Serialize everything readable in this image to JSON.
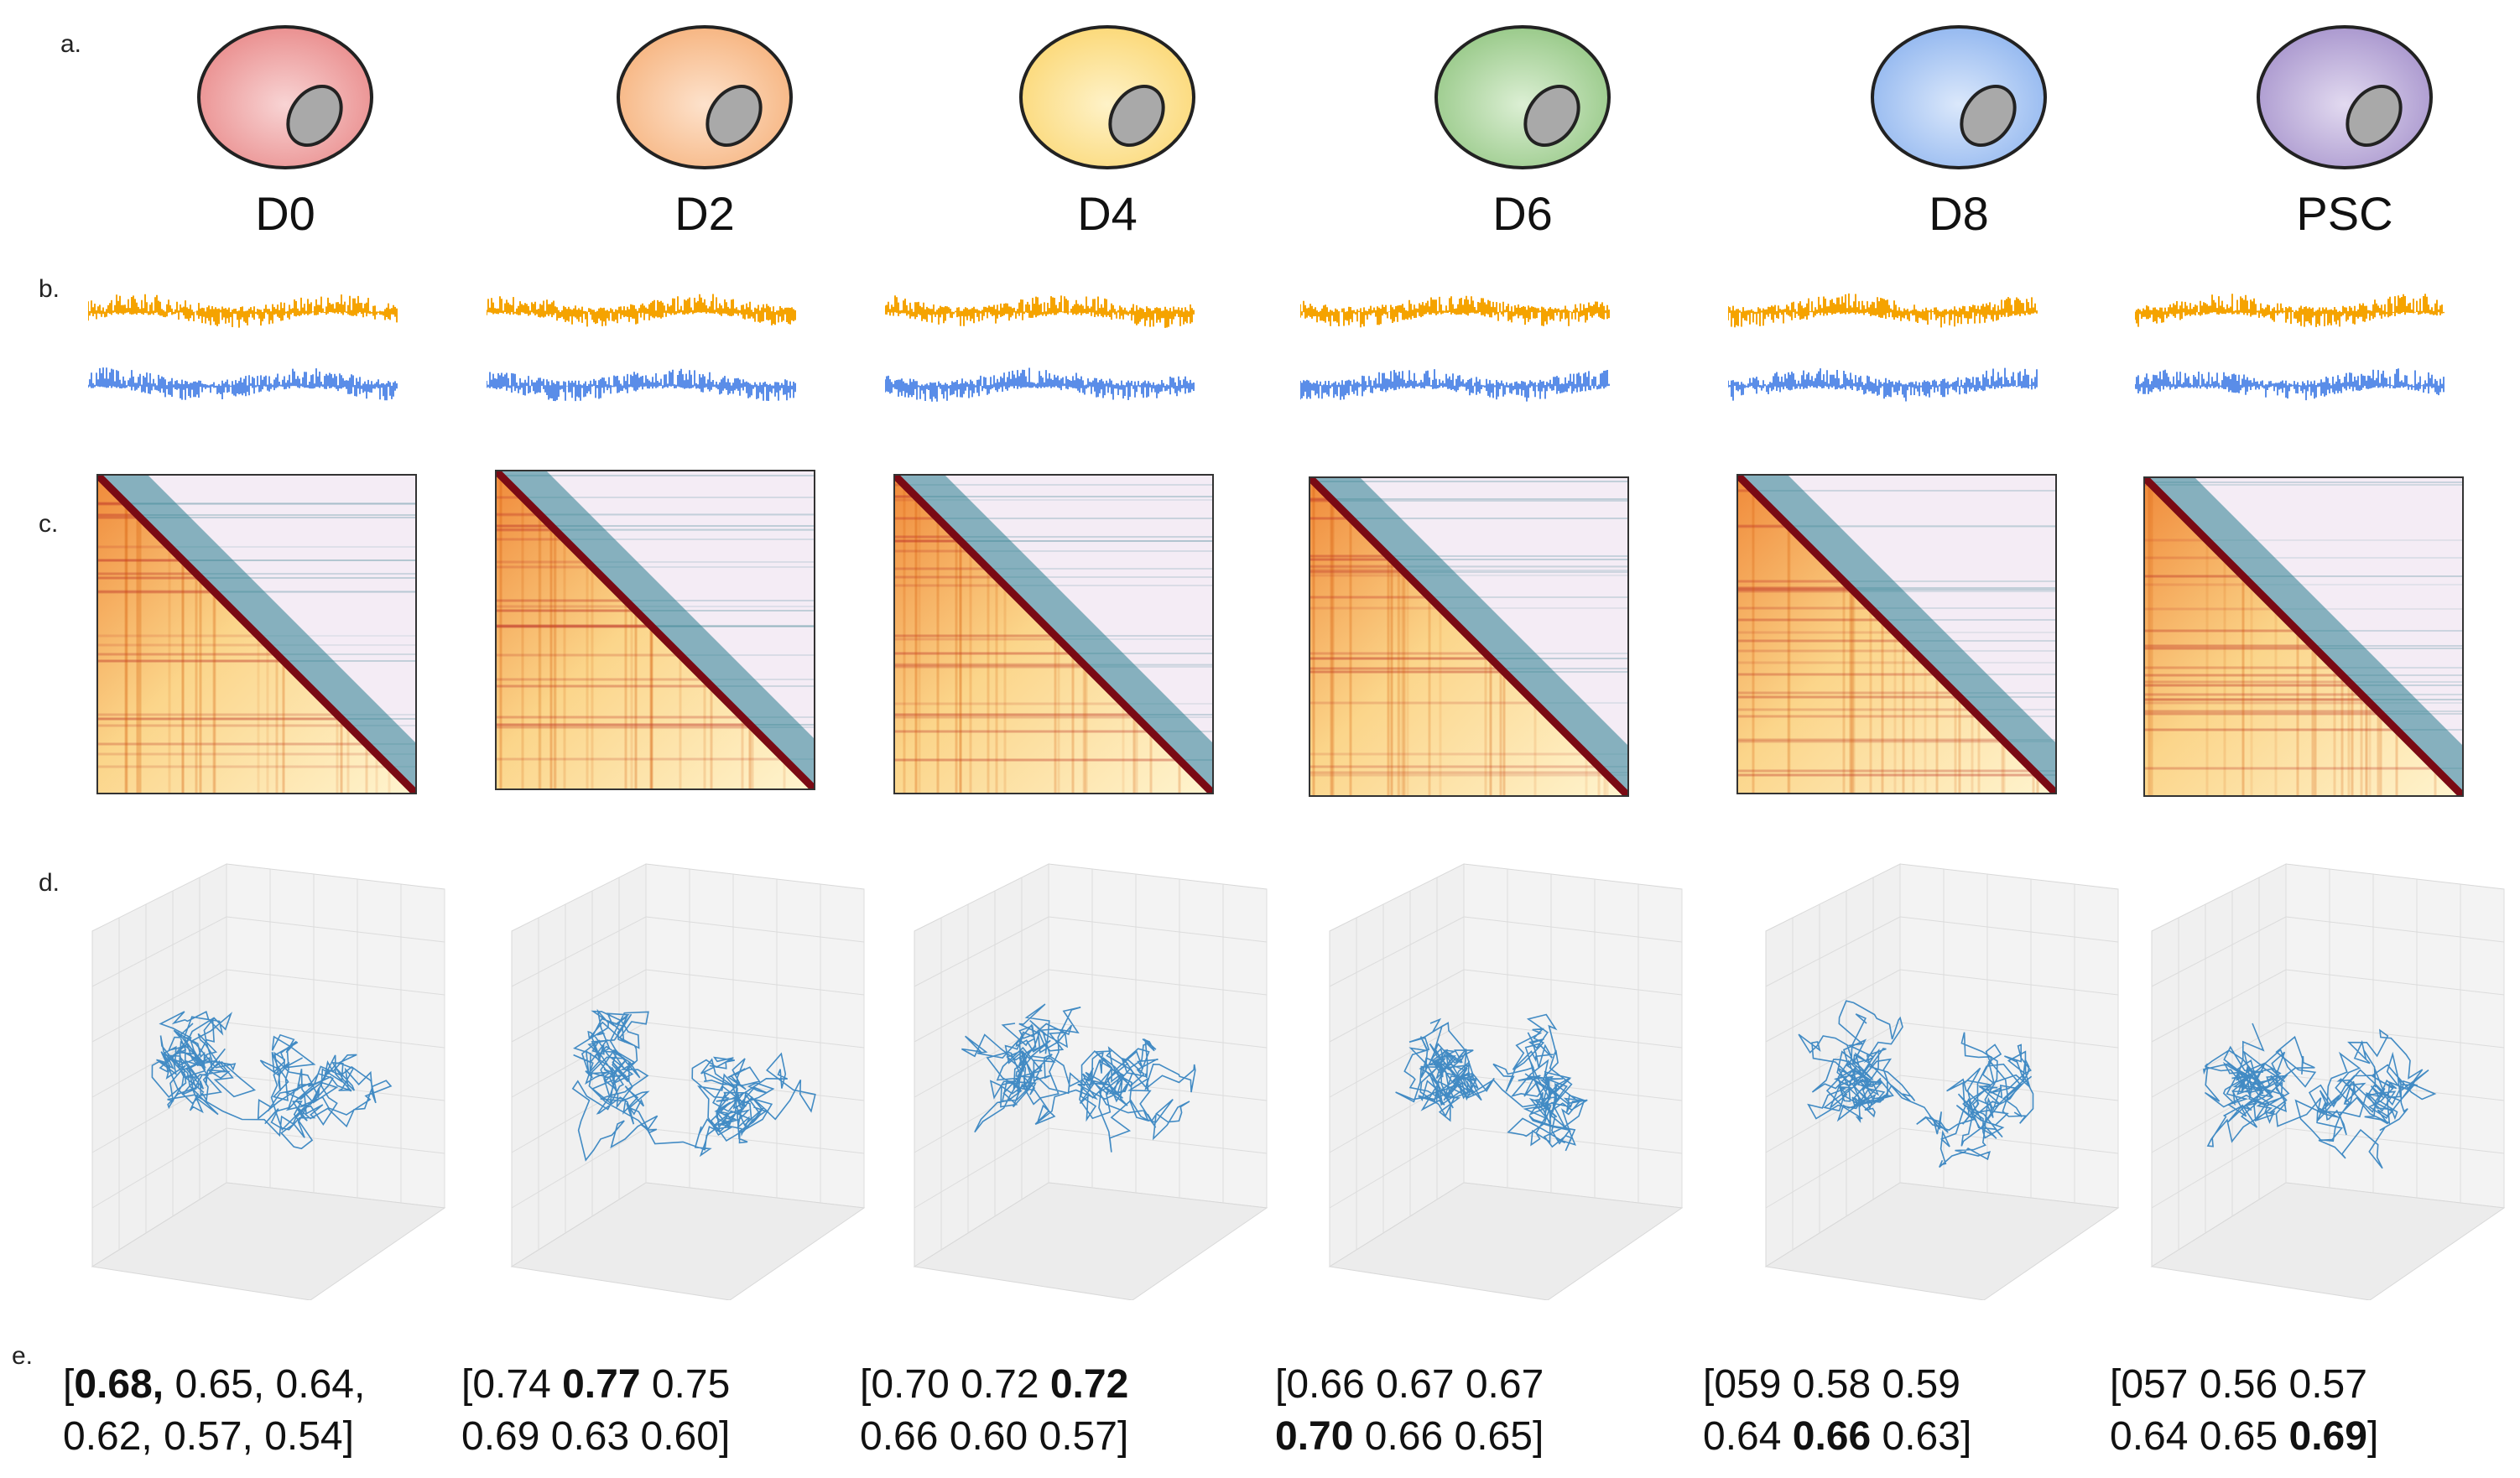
{
  "panel_labels": [
    "a.",
    "b.",
    "c.",
    "d.",
    "e."
  ],
  "colors": {
    "track_orange": "#f5a300",
    "track_blue": "#5a8de8",
    "structure_blue": "#2f7fbf",
    "nucleus_gray": "#a9a9a9"
  },
  "stages": [
    {
      "label": "D0",
      "cell_color": "#e98a8a",
      "cell_highlight": "#f8d4d4",
      "scores": [
        {
          "t": "[",
          "b": false
        },
        {
          "t": "0.68,",
          "b": true
        },
        {
          "t": " 0.65, 0.64,",
          "b": false
        },
        {
          "t": "\n0.62, 0.57, 0.54]",
          "b": false
        }
      ]
    },
    {
      "label": "D2",
      "cell_color": "#f6b27c",
      "cell_highlight": "#fde2cc",
      "scores": [
        {
          "t": "[0.74 ",
          "b": false
        },
        {
          "t": "0.77",
          "b": true
        },
        {
          "t": " 0.75",
          "b": false
        },
        {
          "t": "\n0.69 0.63 0.60]",
          "b": false
        }
      ]
    },
    {
      "label": "D4",
      "cell_color": "#fbd773",
      "cell_highlight": "#fef2c8",
      "scores": [
        {
          "t": "[0.70 0.72 ",
          "b": false
        },
        {
          "t": "0.72",
          "b": true
        },
        {
          "t": "\n0.66 0.60 0.57]",
          "b": false
        }
      ]
    },
    {
      "label": "D6",
      "cell_color": "#94c784",
      "cell_highlight": "#dcefd4",
      "scores": [
        {
          "t": "[0.66 0.67 0.67",
          "b": false
        },
        {
          "t": "\n",
          "b": false
        },
        {
          "t": "0.70",
          "b": true
        },
        {
          "t": " 0.66 0.65]",
          "b": false
        }
      ]
    },
    {
      "label": "D8",
      "cell_color": "#8fb5ef",
      "cell_highlight": "#dbe8fb",
      "scores": [
        {
          "t": "[059 0.58 0.59",
          "b": false
        },
        {
          "t": "\n0.64 ",
          "b": false
        },
        {
          "t": "0.66",
          "b": true
        },
        {
          "t": " 0.63]",
          "b": false
        }
      ]
    },
    {
      "label": "PSC",
      "cell_color": "#a693cc",
      "cell_highlight": "#e2daf0",
      "scores": [
        {
          "t": "[057 0.56 0.57",
          "b": false
        },
        {
          "t": "\n0.64 0.65 ",
          "b": false
        },
        {
          "t": "0.69",
          "b": true
        },
        {
          "t": "]",
          "b": false
        }
      ]
    }
  ]
}
